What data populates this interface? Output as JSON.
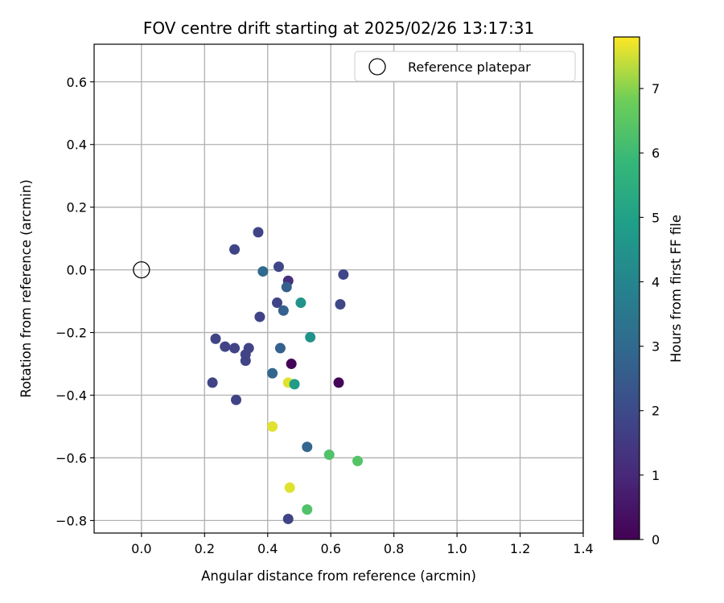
{
  "chart_data": {
    "type": "scatter",
    "title": "FOV centre drift starting at 2025/02/26 13:17:31",
    "xlabel": "Angular distance from reference (arcmin)",
    "ylabel": "Rotation from reference (arcmin)",
    "xlim": [
      -0.15,
      1.4
    ],
    "ylim": [
      -0.84,
      0.72
    ],
    "xticks": [
      0.0,
      0.2,
      0.4,
      0.6,
      0.8,
      1.0,
      1.2,
      1.4
    ],
    "xtick_labels": [
      "0.0",
      "0.2",
      "0.4",
      "0.6",
      "0.8",
      "1.0",
      "1.2",
      "1.4"
    ],
    "yticks": [
      0.6,
      0.4,
      0.2,
      0.0,
      -0.2,
      -0.4,
      -0.6,
      -0.8
    ],
    "ytick_labels": [
      "0.6",
      "0.4",
      "0.2",
      "0.0",
      "−0.2",
      "−0.4",
      "−0.6",
      "−0.8"
    ],
    "grid": true,
    "legend": {
      "placement": "top-right",
      "entries": [
        "Reference platepar"
      ]
    },
    "reference_point": {
      "x": 0.0,
      "y": 0.0,
      "label": "Reference platepar"
    },
    "colorbar": {
      "label": "Hours from first FF file",
      "colormap": "viridis",
      "range": [
        0,
        7.8
      ],
      "ticks": [
        0,
        1,
        2,
        3,
        4,
        5,
        6,
        7
      ],
      "tick_labels": [
        "0",
        "1",
        "2",
        "3",
        "4",
        "5",
        "6",
        "7"
      ]
    },
    "points": [
      {
        "x": 0.37,
        "y": 0.12,
        "t": 1.8
      },
      {
        "x": 0.295,
        "y": 0.065,
        "t": 1.8
      },
      {
        "x": 0.435,
        "y": 0.01,
        "t": 1.9
      },
      {
        "x": 0.385,
        "y": -0.005,
        "t": 3.0
      },
      {
        "x": 0.64,
        "y": -0.015,
        "t": 1.9
      },
      {
        "x": 0.465,
        "y": -0.035,
        "t": 1.2
      },
      {
        "x": 0.46,
        "y": -0.055,
        "t": 2.7
      },
      {
        "x": 0.43,
        "y": -0.105,
        "t": 1.8
      },
      {
        "x": 0.505,
        "y": -0.105,
        "t": 4.5
      },
      {
        "x": 0.63,
        "y": -0.11,
        "t": 1.9
      },
      {
        "x": 0.45,
        "y": -0.13,
        "t": 2.7
      },
      {
        "x": 0.375,
        "y": -0.15,
        "t": 1.8
      },
      {
        "x": 0.535,
        "y": -0.215,
        "t": 4.5
      },
      {
        "x": 0.235,
        "y": -0.22,
        "t": 1.8
      },
      {
        "x": 0.265,
        "y": -0.245,
        "t": 1.8
      },
      {
        "x": 0.295,
        "y": -0.25,
        "t": 1.8
      },
      {
        "x": 0.34,
        "y": -0.25,
        "t": 1.8
      },
      {
        "x": 0.44,
        "y": -0.25,
        "t": 2.7
      },
      {
        "x": 0.33,
        "y": -0.27,
        "t": 1.8
      },
      {
        "x": 0.33,
        "y": -0.29,
        "t": 1.8
      },
      {
        "x": 0.475,
        "y": -0.3,
        "t": 0.1
      },
      {
        "x": 0.415,
        "y": -0.33,
        "t": 2.9
      },
      {
        "x": 0.225,
        "y": -0.36,
        "t": 1.8
      },
      {
        "x": 0.465,
        "y": -0.36,
        "t": 7.6
      },
      {
        "x": 0.625,
        "y": -0.36,
        "t": 0.1
      },
      {
        "x": 0.485,
        "y": -0.365,
        "t": 4.8
      },
      {
        "x": 0.3,
        "y": -0.415,
        "t": 1.8
      },
      {
        "x": 0.415,
        "y": -0.5,
        "t": 7.6
      },
      {
        "x": 0.525,
        "y": -0.565,
        "t": 2.9
      },
      {
        "x": 0.595,
        "y": -0.59,
        "t": 6.3
      },
      {
        "x": 0.685,
        "y": -0.61,
        "t": 6.4
      },
      {
        "x": 0.47,
        "y": -0.695,
        "t": 7.6
      },
      {
        "x": 0.525,
        "y": -0.765,
        "t": 6.3
      },
      {
        "x": 0.465,
        "y": -0.795,
        "t": 1.8
      }
    ]
  }
}
